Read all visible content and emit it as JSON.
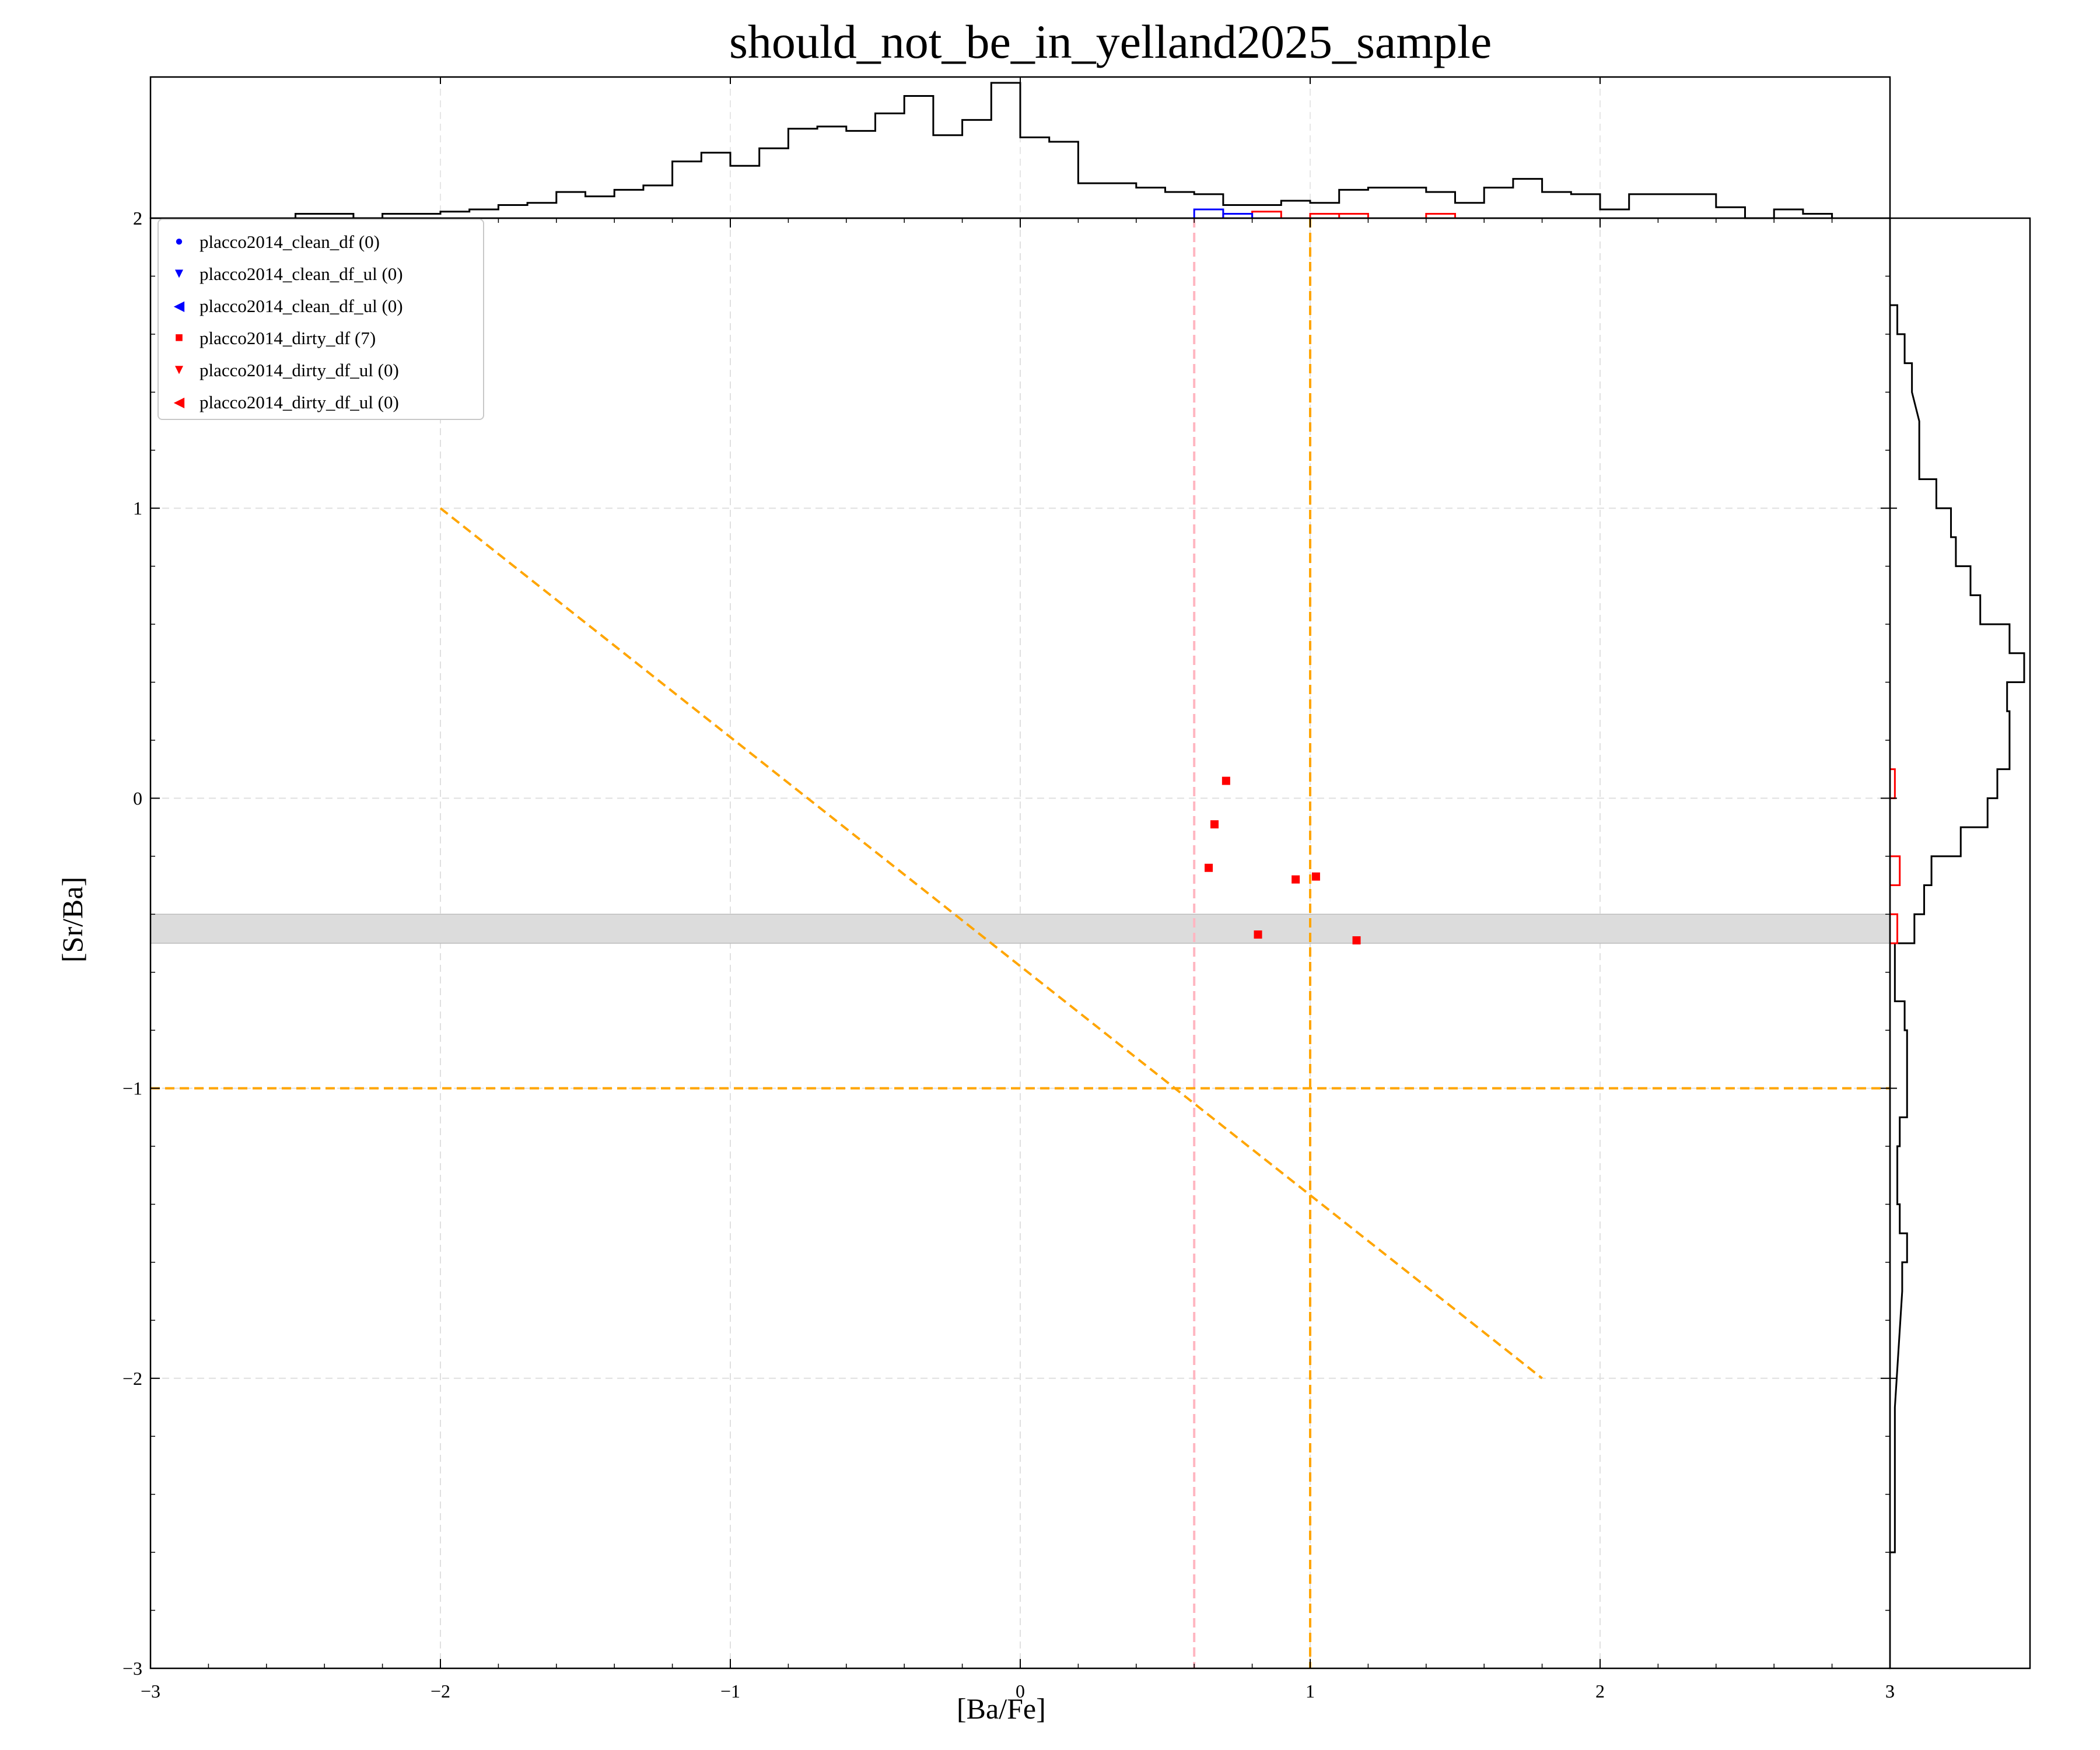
{
  "title": "should_not_be_in_yelland2025_sample",
  "chart_data": {
    "type": "scatter",
    "title": "should_not_be_in_yelland2025_sample",
    "xlabel": "[Ba/Fe]",
    "ylabel": "[Sr/Ba]",
    "xlim": [
      -3,
      3
    ],
    "ylim": [
      -3,
      2
    ],
    "x_ticks": [
      "−3",
      "−2",
      "−1",
      "0",
      "1",
      "2",
      "3"
    ],
    "y_ticks": [
      "−3",
      "−2",
      "−1",
      "0",
      "1",
      "2"
    ],
    "grid": true,
    "legend_placement": "top-left",
    "legend": [
      {
        "label": "placco2014_clean_df (0)",
        "marker": "circle",
        "color": "#0000ff"
      },
      {
        "label": "placco2014_clean_df_ul (0)",
        "marker": "triangle-down",
        "color": "#0000ff"
      },
      {
        "label": "placco2014_clean_df_ul (0)",
        "marker": "triangle-left",
        "color": "#0000ff"
      },
      {
        "label": "placco2014_dirty_df (7)",
        "marker": "square",
        "color": "#ff0000"
      },
      {
        "label": "placco2014_dirty_df_ul (0)",
        "marker": "triangle-down",
        "color": "#ff0000"
      },
      {
        "label": "placco2014_dirty_df_ul (0)",
        "marker": "triangle-left",
        "color": "#ff0000"
      }
    ],
    "series": [
      {
        "name": "placco2014_dirty_df (7)",
        "color": "#ff0000",
        "marker": "square",
        "points": [
          [
            0.71,
            0.06
          ],
          [
            0.67,
            -0.09
          ],
          [
            0.65,
            -0.24
          ],
          [
            0.95,
            -0.28
          ],
          [
            1.02,
            -0.27
          ],
          [
            0.82,
            -0.47
          ],
          [
            1.16,
            -0.49
          ]
        ]
      }
    ],
    "reference_lines": [
      {
        "kind": "vline",
        "x": 0.6,
        "color": "#ffb6c1",
        "style": "dashed"
      },
      {
        "kind": "vline",
        "x": 1.0,
        "color": "#ffa500",
        "style": "dashed"
      },
      {
        "kind": "hline",
        "y": -1.0,
        "color": "#ffa500",
        "style": "dashed"
      },
      {
        "kind": "segment",
        "x1": -2.0,
        "y1": 1.0,
        "x2": 1.8,
        "y2": -2.0,
        "color": "#ffa500",
        "style": "dashed"
      }
    ],
    "shaded_band": {
      "y0": -0.5,
      "y1": -0.4,
      "color": "#dcdcdc"
    },
    "top_histogram": {
      "bin_width": 0.1,
      "black": [
        [
          -2.5,
          0.02
        ],
        [
          -2.4,
          0.02
        ],
        [
          -2.3,
          0
        ],
        [
          -2.2,
          0.02
        ],
        [
          -2.1,
          0.02
        ],
        [
          -2.0,
          0.03
        ],
        [
          -1.9,
          0.04
        ],
        [
          -1.8,
          0.06
        ],
        [
          -1.7,
          0.07
        ],
        [
          -1.6,
          0.12
        ],
        [
          -1.5,
          0.1
        ],
        [
          -1.4,
          0.13
        ],
        [
          -1.3,
          0.15
        ],
        [
          -1.2,
          0.26
        ],
        [
          -1.1,
          0.3
        ],
        [
          -1.0,
          0.24
        ],
        [
          -0.9,
          0.32
        ],
        [
          -0.8,
          0.41
        ],
        [
          -0.7,
          0.42
        ],
        [
          -0.6,
          0.4
        ],
        [
          -0.5,
          0.48
        ],
        [
          -0.4,
          0.56
        ],
        [
          -0.3,
          0.38
        ],
        [
          -0.2,
          0.45
        ],
        [
          -0.1,
          0.62
        ],
        [
          0.0,
          0.37
        ],
        [
          0.1,
          0.35
        ],
        [
          0.2,
          0.16
        ],
        [
          0.3,
          0.16
        ],
        [
          0.4,
          0.14
        ],
        [
          0.5,
          0.12
        ],
        [
          0.6,
          0.11
        ],
        [
          0.7,
          0.06
        ],
        [
          0.8,
          0.06
        ],
        [
          0.9,
          0.08
        ],
        [
          1.0,
          0.07
        ],
        [
          1.1,
          0.13
        ],
        [
          1.2,
          0.14
        ],
        [
          1.3,
          0.14
        ],
        [
          1.4,
          0.12
        ],
        [
          1.5,
          0.07
        ],
        [
          1.6,
          0.14
        ],
        [
          1.7,
          0.18
        ],
        [
          1.8,
          0.12
        ],
        [
          1.9,
          0.11
        ],
        [
          2.0,
          0.04
        ],
        [
          2.1,
          0.11
        ],
        [
          2.2,
          0.11
        ],
        [
          2.3,
          0.11
        ],
        [
          2.4,
          0.05
        ],
        [
          2.5,
          0
        ],
        [
          2.6,
          0.04
        ],
        [
          2.7,
          0.02
        ]
      ],
      "red": [
        [
          0.7,
          0.02
        ],
        [
          0.8,
          0.03
        ],
        [
          1.0,
          0.02
        ],
        [
          1.1,
          0.02
        ],
        [
          1.4,
          0.02
        ]
      ],
      "blue": [
        [
          0.6,
          0.04
        ],
        [
          0.7,
          0.02
        ]
      ]
    },
    "right_histogram": {
      "bin_width": 0.1,
      "black": [
        [
          1.6,
          0.03
        ],
        [
          1.5,
          0.06
        ],
        [
          1.4,
          0.09
        ],
        [
          1.2,
          0.12
        ],
        [
          1.1,
          0.12
        ],
        [
          1.0,
          0.19
        ],
        [
          0.9,
          0.25
        ],
        [
          0.8,
          0.27
        ],
        [
          0.7,
          0.33
        ],
        [
          0.6,
          0.37
        ],
        [
          0.5,
          0.49
        ],
        [
          0.4,
          0.55
        ],
        [
          0.3,
          0.48
        ],
        [
          0.2,
          0.49
        ],
        [
          0.1,
          0.49
        ],
        [
          0.0,
          0.44
        ],
        [
          -0.1,
          0.4
        ],
        [
          -0.2,
          0.29
        ],
        [
          -0.3,
          0.17
        ],
        [
          -0.4,
          0.14
        ],
        [
          -0.5,
          0.1
        ],
        [
          -0.6,
          0.02
        ],
        [
          -0.7,
          0.02
        ],
        [
          -0.8,
          0.06
        ],
        [
          -0.9,
          0.07
        ],
        [
          -1.0,
          0.07
        ],
        [
          -1.1,
          0.07
        ],
        [
          -1.2,
          0.04
        ],
        [
          -1.3,
          0.03
        ],
        [
          -1.4,
          0.03
        ],
        [
          -1.5,
          0.04
        ],
        [
          -1.6,
          0.07
        ],
        [
          -1.7,
          0.05
        ],
        [
          -2.2,
          0.02
        ],
        [
          -2.6,
          0.02
        ]
      ],
      "red": [
        [
          0.0,
          0.02
        ],
        [
          -0.3,
          0.04
        ],
        [
          -0.5,
          0.03
        ]
      ]
    }
  }
}
